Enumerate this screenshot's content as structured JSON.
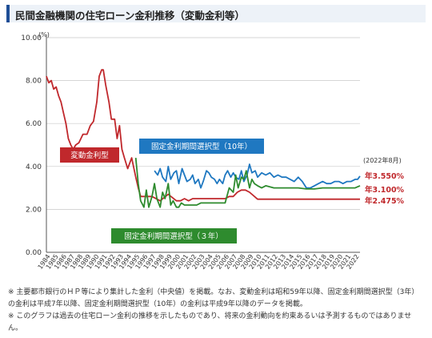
{
  "header": {
    "title": "民間金融機関の住宅ローン金利推移（変動金利等）"
  },
  "chart_data": {
    "type": "line",
    "y_unit": "(%)",
    "ylim": [
      0,
      10
    ],
    "yticks": [
      "0.00",
      "2.00",
      "4.00",
      "6.00",
      "8.00",
      "10.00"
    ],
    "xlim": [
      1984,
      2022.6
    ],
    "xticks": [
      "1984",
      "1985",
      "1986",
      "1987",
      "1988",
      "1989",
      "1990",
      "1991",
      "1992",
      "1993",
      "1994",
      "1995",
      "1996",
      "1997",
      "1998",
      "1999",
      "2000",
      "2001",
      "2002",
      "2003",
      "2004",
      "2005",
      "2006",
      "2007",
      "2008",
      "2009",
      "2010",
      "2011",
      "2012",
      "2013",
      "2014",
      "2015",
      "2016",
      "2017",
      "2018",
      "2019",
      "2020",
      "2021",
      "2022"
    ],
    "date_note": "(2022年8月)",
    "series": [
      {
        "name": "変動金利型",
        "color": "#c0282c",
        "end_label": "年2.475%",
        "x": [
          1984.0,
          1984.3,
          1984.6,
          1984.9,
          1985.2,
          1985.5,
          1985.8,
          1986.1,
          1986.4,
          1986.7,
          1987.0,
          1987.3,
          1987.6,
          1988.0,
          1988.5,
          1989.0,
          1989.4,
          1989.8,
          1990.2,
          1990.5,
          1990.8,
          1991.0,
          1991.3,
          1991.7,
          1992.0,
          1992.4,
          1992.7,
          1993.0,
          1993.3,
          1993.6,
          1994.0,
          1994.5,
          1995.0,
          1995.3,
          1995.6,
          1996.0,
          1997.0,
          1998.0,
          1999.0,
          2000.0,
          2000.5,
          2001.0,
          2001.5,
          2002.0,
          2003.0,
          2004.0,
          2005.0,
          2006.0,
          2006.5,
          2007.0,
          2007.5,
          2008.0,
          2008.5,
          2009.0,
          2010.0,
          2012.0,
          2014.0,
          2016.0,
          2018.0,
          2020.0,
          2022.6
        ],
        "y": [
          8.2,
          7.9,
          8.0,
          7.6,
          7.7,
          7.3,
          7.0,
          6.5,
          6.0,
          5.3,
          5.0,
          4.8,
          5.0,
          5.1,
          5.5,
          5.5,
          5.9,
          6.1,
          7.0,
          8.2,
          8.5,
          8.5,
          7.8,
          7.0,
          6.2,
          6.2,
          5.3,
          5.9,
          4.8,
          4.4,
          3.9,
          4.4,
          3.5,
          3.0,
          2.6,
          2.6,
          2.6,
          2.4,
          2.7,
          2.4,
          2.4,
          2.5,
          2.4,
          2.5,
          2.5,
          2.5,
          2.5,
          2.5,
          2.6,
          2.6,
          2.8,
          2.9,
          2.9,
          2.8,
          2.475,
          2.475,
          2.475,
          2.475,
          2.475,
          2.475,
          2.475
        ]
      },
      {
        "name": "固定金利期間選択型（10年）",
        "color": "#1f78c1",
        "end_label": "年3.550%",
        "x": [
          1997.3,
          1997.7,
          1998.0,
          1998.3,
          1998.7,
          1999.0,
          1999.3,
          1999.7,
          2000.0,
          2000.3,
          2000.7,
          2001.0,
          2001.3,
          2001.7,
          2002.0,
          2002.3,
          2002.7,
          2003.0,
          2003.3,
          2003.7,
          2004.0,
          2004.3,
          2004.7,
          2005.0,
          2005.3,
          2005.7,
          2006.0,
          2006.3,
          2006.7,
          2007.0,
          2007.3,
          2007.7,
          2008.0,
          2008.3,
          2008.7,
          2009.0,
          2009.3,
          2009.7,
          2010.0,
          2010.5,
          2011.0,
          2011.5,
          2012.0,
          2012.5,
          2013.0,
          2013.5,
          2014.0,
          2014.5,
          2015.0,
          2015.5,
          2016.0,
          2016.5,
          2017.0,
          2017.5,
          2018.0,
          2018.5,
          2019.0,
          2019.5,
          2020.0,
          2020.5,
          2021.0,
          2021.5,
          2022.0,
          2022.3,
          2022.6
        ],
        "y": [
          3.8,
          3.6,
          3.9,
          3.5,
          3.3,
          4.0,
          3.4,
          3.7,
          3.8,
          3.2,
          3.9,
          3.6,
          3.3,
          3.4,
          3.6,
          3.2,
          3.4,
          3.0,
          3.3,
          3.8,
          3.7,
          3.5,
          3.4,
          3.2,
          3.4,
          3.2,
          3.6,
          3.8,
          3.5,
          3.7,
          3.5,
          3.4,
          3.8,
          3.3,
          3.6,
          4.1,
          3.7,
          3.8,
          3.5,
          3.7,
          3.6,
          3.7,
          3.5,
          3.6,
          3.5,
          3.5,
          3.4,
          3.3,
          3.5,
          3.3,
          3.0,
          3.0,
          3.1,
          3.2,
          3.3,
          3.2,
          3.2,
          3.3,
          3.3,
          3.2,
          3.3,
          3.3,
          3.4,
          3.4,
          3.55
        ]
      },
      {
        "name": "固定金利期間選択型（３年）",
        "color": "#2e8b2e",
        "end_label": "年3.100%",
        "x": [
          1995.0,
          1995.3,
          1995.6,
          1996.0,
          1996.3,
          1996.6,
          1997.0,
          1997.3,
          1997.6,
          1998.0,
          1998.3,
          1998.6,
          1999.0,
          1999.3,
          1999.6,
          2000.0,
          2000.3,
          2000.6,
          2001.0,
          2001.5,
          2002.0,
          2002.5,
          2003.0,
          2004.0,
          2005.0,
          2006.0,
          2006.5,
          2007.0,
          2007.3,
          2007.6,
          2008.0,
          2008.3,
          2008.6,
          2009.0,
          2009.3,
          2009.6,
          2010.0,
          2010.5,
          2011.0,
          2012.0,
          2013.0,
          2014.0,
          2015.0,
          2016.0,
          2017.0,
          2018.0,
          2019.0,
          2020.0,
          2021.0,
          2022.0,
          2022.6
        ],
        "y": [
          4.4,
          3.2,
          2.4,
          2.1,
          2.9,
          2.1,
          2.6,
          3.2,
          2.5,
          2.1,
          2.8,
          2.5,
          3.2,
          2.2,
          2.4,
          2.1,
          2.1,
          2.3,
          2.2,
          2.2,
          2.2,
          2.2,
          2.3,
          2.3,
          2.3,
          2.3,
          3.0,
          2.8,
          3.6,
          3.0,
          3.5,
          3.4,
          3.8,
          3.0,
          3.4,
          3.2,
          3.1,
          3.0,
          3.1,
          3.0,
          3.0,
          3.0,
          3.0,
          2.95,
          2.95,
          3.0,
          3.0,
          3.0,
          3.0,
          3.0,
          3.1
        ]
      }
    ]
  },
  "notes": [
    "※ 主要都市銀行のＨＰ等により集計した金利（中央値）を掲載。なお、変動金利は昭和59年以降、固定金利期間選択型（3年）",
    "の金利は平成7年以降、固定金利期間選択型（10年）の金利は平成9年以降のデータを掲載。",
    "※ このグラフは過去の住宅ローン金利の推移を示したものであり、将来の金利動向を約束あるいは予測するものではありませ",
    "ん。"
  ]
}
